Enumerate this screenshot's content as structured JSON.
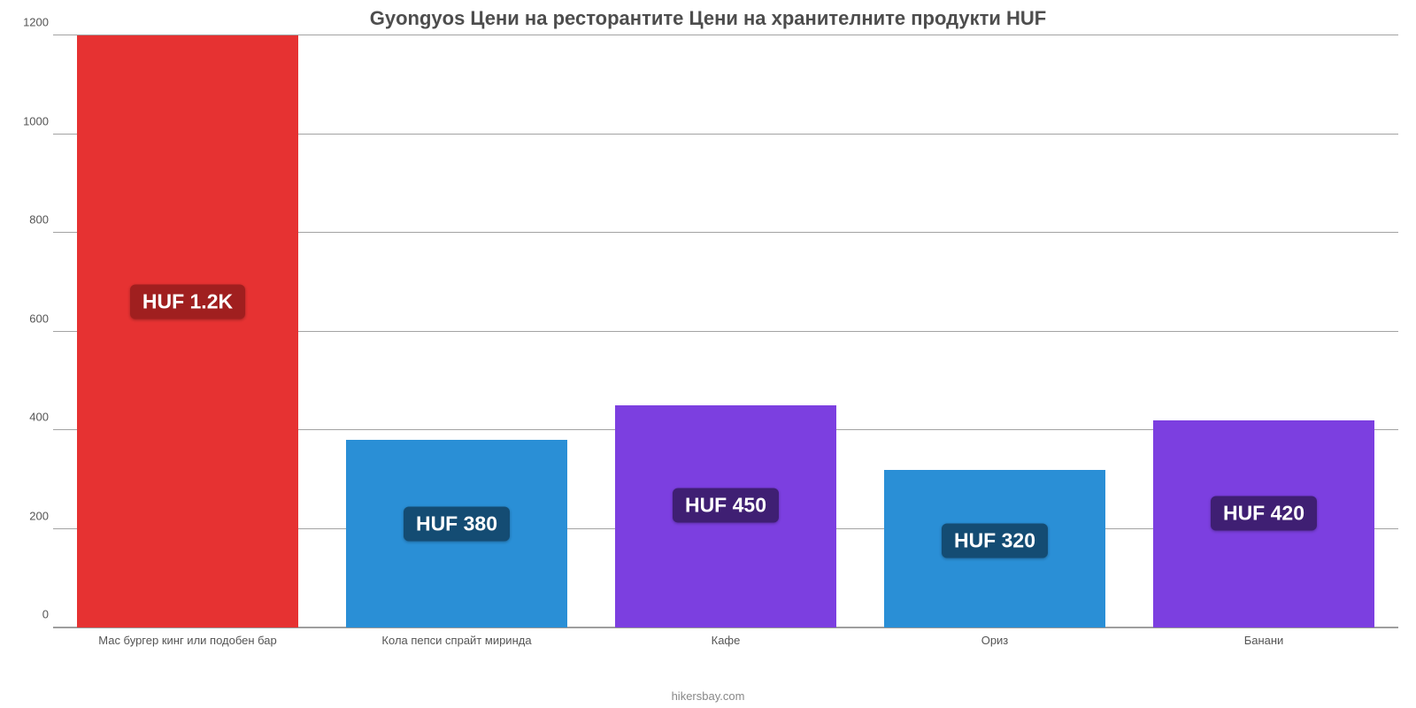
{
  "chart": {
    "type": "bar",
    "title": "Gyongyos Цени на ресторантите Цени на хранителните продукти HUF",
    "title_fontsize": 22,
    "title_color": "#4d4d4d",
    "background_color": "#ffffff",
    "grid_color": "#999999",
    "axis_label_color": "#555555",
    "axis_label_fontsize": 13,
    "ylim": [
      0,
      1200
    ],
    "ytick_step": 200,
    "yticks": [
      0,
      200,
      400,
      600,
      800,
      1000,
      1200
    ],
    "categories": [
      "Мас бургер кинг или подобен бар",
      "Кола пепси спрайт миринда",
      "Кафе",
      "Ориз",
      "Банани"
    ],
    "values": [
      1200,
      380,
      450,
      320,
      420
    ],
    "value_labels": [
      "HUF 1.2K",
      "HUF 380",
      "HUF 450",
      "HUF 320",
      "HUF 420"
    ],
    "bar_colors": [
      "#e63232",
      "#2a8fd6",
      "#7c3fe0",
      "#2a8fd6",
      "#7c3fe0"
    ],
    "badge_colors": [
      "#a01f1f",
      "#144c73",
      "#3f1f73",
      "#144c73",
      "#3f1f73"
    ],
    "badge_fontsize": 23,
    "bar_width": 0.82,
    "footer": "hikersbay.com",
    "footer_color": "#888888"
  }
}
